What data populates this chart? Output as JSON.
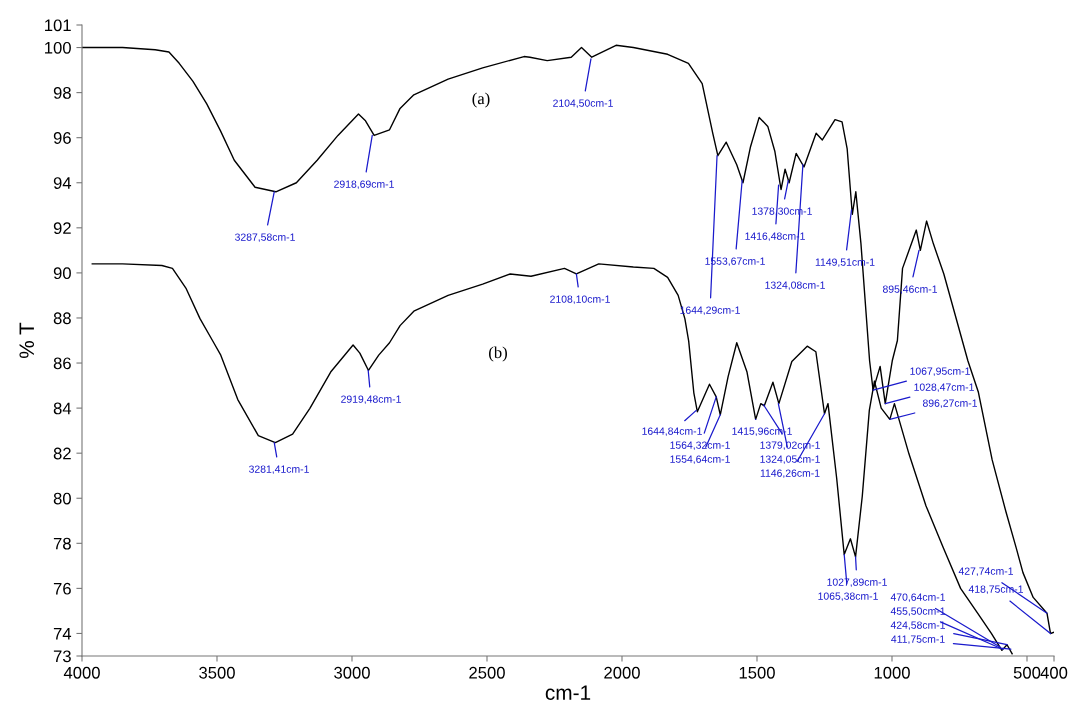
{
  "chart_data": {
    "type": "line",
    "xlabel": "cm-1",
    "ylabel": "% T",
    "xlim": [
      4000,
      400
    ],
    "xticks": [
      4000,
      3500,
      3000,
      2500,
      2000,
      1500,
      1000,
      500,
      400
    ],
    "ylim": [
      73,
      101
    ],
    "yticks": [
      73,
      74,
      76,
      78,
      80,
      82,
      84,
      86,
      88,
      90,
      92,
      94,
      96,
      98,
      100,
      101
    ],
    "grid": false,
    "marker": "none",
    "line_style": "solid",
    "series": [
      {
        "color": "#000000",
        "x": [
          4000,
          3850,
          3729,
          3678,
          3640,
          3589,
          3538,
          3487,
          3436,
          3359,
          3282,
          3206,
          3129,
          3052,
          2976,
          2950,
          2918,
          2861,
          2822,
          2771,
          2644,
          2516,
          2363,
          2341,
          2277,
          2188,
          2150,
          2112,
          2022,
          1958,
          1831,
          1754,
          1703,
          1664,
          1645,
          1614,
          1575,
          1552,
          1524,
          1492,
          1460,
          1434,
          1411,
          1396,
          1381,
          1355,
          1326,
          1281,
          1258,
          1211,
          1185,
          1166,
          1147,
          1134,
          1115,
          1083,
          1070,
          1044,
          1025,
          999,
          980,
          961,
          910,
          895,
          872,
          847,
          808,
          719,
          680,
          629,
          578,
          540,
          515,
          477,
          426,
          413,
          400
        ],
        "values": [
          100.0,
          100.0,
          99.9,
          99.8,
          99.3,
          98.5,
          97.5,
          96.3,
          95.0,
          93.8,
          93.6,
          94.0,
          95.0,
          96.1,
          97.05,
          96.75,
          96.1,
          96.35,
          97.3,
          97.9,
          98.6,
          99.1,
          99.6,
          99.57,
          99.42,
          99.57,
          100.0,
          99.57,
          100.1,
          100.0,
          99.7,
          99.3,
          98.4,
          96.2,
          95.2,
          95.8,
          94.8,
          94.0,
          95.6,
          96.9,
          96.5,
          95.4,
          93.7,
          94.6,
          94.0,
          95.3,
          94.7,
          96.2,
          95.9,
          96.8,
          96.7,
          95.5,
          92.6,
          93.6,
          91.3,
          86.1,
          84.8,
          85.85,
          84.2,
          86.1,
          87.0,
          90.2,
          91.9,
          91.0,
          92.3,
          91.3,
          89.95,
          86.1,
          84.7,
          81.7,
          79.4,
          77.8,
          76.7,
          75.6,
          74.9,
          74.0,
          74.05
        ]
      },
      {
        "color": "#000000",
        "x": [
          3962,
          3850,
          3704,
          3665,
          3614,
          3563,
          3512,
          3486,
          3423,
          3347,
          3284,
          3220,
          3156,
          3079,
          2996,
          2971,
          2939,
          2901,
          2861,
          2822,
          2771,
          2644,
          2516,
          2414,
          2337,
          2213,
          2169,
          2086,
          1958,
          1882,
          1831,
          1792,
          1767,
          1753,
          1734,
          1721,
          1676,
          1651,
          1636,
          1607,
          1575,
          1537,
          1505,
          1486,
          1473,
          1441,
          1419,
          1371,
          1314,
          1282,
          1250,
          1237,
          1205,
          1177,
          1154,
          1135,
          1110,
          1084,
          1065,
          1040,
          1008,
          991,
          937,
          874,
          810,
          746,
          683,
          632,
          593,
          574,
          555
        ],
        "values": [
          90.4,
          90.4,
          90.33,
          90.2,
          89.3,
          87.97,
          86.9,
          86.35,
          84.38,
          82.78,
          82.47,
          82.85,
          83.99,
          85.6,
          86.8,
          86.44,
          85.67,
          86.35,
          86.9,
          87.66,
          88.3,
          89.0,
          89.5,
          89.95,
          89.85,
          90.2,
          89.96,
          90.4,
          90.26,
          90.2,
          89.8,
          89.0,
          87.96,
          86.97,
          84.68,
          83.84,
          85.06,
          84.5,
          83.7,
          85.4,
          86.9,
          85.6,
          83.5,
          84.2,
          84.1,
          85.15,
          84.2,
          86.07,
          86.75,
          86.5,
          83.75,
          84.2,
          80.9,
          77.5,
          78.2,
          77.4,
          80.1,
          83.9,
          85.2,
          84.0,
          83.5,
          84.2,
          81.96,
          79.66,
          77.8,
          76.0,
          74.9,
          74.0,
          73.25,
          73.5,
          73.1
        ]
      }
    ],
    "annotations": [
      "(a)",
      "(b)",
      {
        "text": "3287,58cm-1",
        "x": 3288,
        "y": 93.6
      },
      {
        "text": "2918,69cm-1",
        "x": 2925,
        "y": 96.1
      },
      {
        "text": "2104,50cm-1",
        "x": 2115,
        "y": 99.5
      },
      {
        "text": "1644,29cm-1",
        "x": 1648,
        "y": 95.2
      },
      {
        "text": "1553,67cm-1",
        "x": 1555,
        "y": 94.1
      },
      {
        "text": "1416,48cm-1",
        "x": 1420,
        "y": 93.9
      },
      {
        "text": "1378,30cm-1",
        "x": 1384,
        "y": 94.1
      },
      {
        "text": "1324,08cm-1",
        "x": 1330,
        "y": 94.8
      },
      {
        "text": "1149,51cm-1",
        "x": 1150,
        "y": 92.8
      },
      {
        "text": "895,46cm-1",
        "x": 900,
        "y": 91.0
      },
      {
        "text": "3281,41cm-1",
        "x": 3288,
        "y": 82.47
      },
      {
        "text": "2919,48cm-1",
        "x": 2940,
        "y": 85.67
      },
      {
        "text": "2108,10cm-1",
        "x": 2169,
        "y": 89.96
      },
      {
        "text": "1644,84cm-1",
        "x": 1725,
        "y": 83.9
      },
      {
        "text": "1564,32cm-1",
        "x": 1651,
        "y": 84.5
      },
      {
        "text": "1554,64cm-1",
        "x": 1636,
        "y": 83.7
      },
      {
        "text": "1415,96cm-1",
        "x": 1505,
        "y": 83.5
      },
      {
        "text": "1379,02cm-1",
        "x": 1476,
        "y": 84.15
      },
      {
        "text": "1324,05cm-1",
        "x": 1421,
        "y": 84.2
      },
      {
        "text": "1146,26cm-1",
        "x": 1250,
        "y": 83.75
      },
      {
        "text": "1065,38cm-1",
        "x": 1177,
        "y": 77.5
      },
      {
        "text": "1027,89cm-1",
        "x": 1135,
        "y": 77.4
      },
      {
        "text": "1067,95cm-1",
        "x": 1070,
        "y": 84.8
      },
      {
        "text": "1028,47cm-1",
        "x": 1025,
        "y": 84.2
      },
      {
        "text": "896,27cm-1",
        "x": 1008,
        "y": 83.5
      },
      {
        "text": "427,74cm-1",
        "x": 426,
        "y": 74.9
      },
      {
        "text": "418,75cm-1",
        "x": 413,
        "y": 74.0
      },
      {
        "text": "470,64cm-1",
        "x": 600,
        "y": 73.4
      },
      {
        "text": "455,50cm-1",
        "x": 590,
        "y": 73.3
      },
      {
        "text": "424,58cm-1",
        "x": 574,
        "y": 73.5
      },
      {
        "text": "411,75cm-1",
        "x": 560,
        "y": 73.3
      }
    ]
  }
}
